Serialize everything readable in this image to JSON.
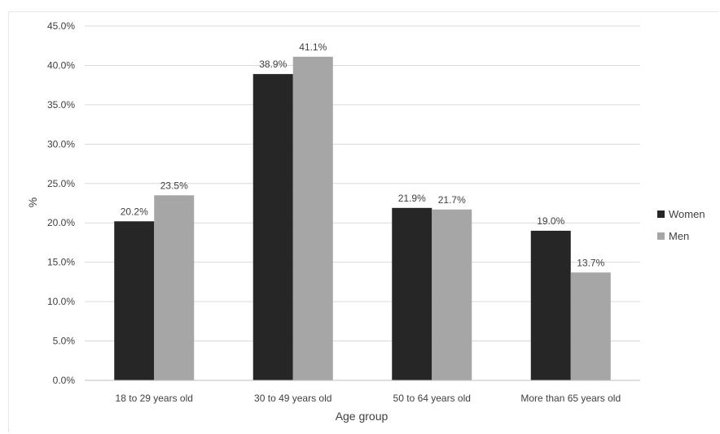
{
  "chart_data": {
    "type": "bar",
    "title": "",
    "xlabel": "Age group",
    "ylabel": "%",
    "categories": [
      "18 to 29 years old",
      "30 to 49 years old",
      "50 to 64 years old",
      "More than 65 years old"
    ],
    "series": [
      {
        "name": "Women",
        "color": "#262626",
        "values": [
          20.2,
          38.9,
          21.9,
          19.0
        ]
      },
      {
        "name": "Men",
        "color": "#a6a6a6",
        "values": [
          23.5,
          41.1,
          21.7,
          13.7
        ]
      }
    ],
    "ylim": [
      0,
      45
    ],
    "yticks": [
      0,
      5,
      10,
      15,
      20,
      25,
      30,
      35,
      40,
      45
    ],
    "y_tick_format": "percent-1dp",
    "grid": true,
    "legend_position": "right",
    "data_labels": true
  }
}
